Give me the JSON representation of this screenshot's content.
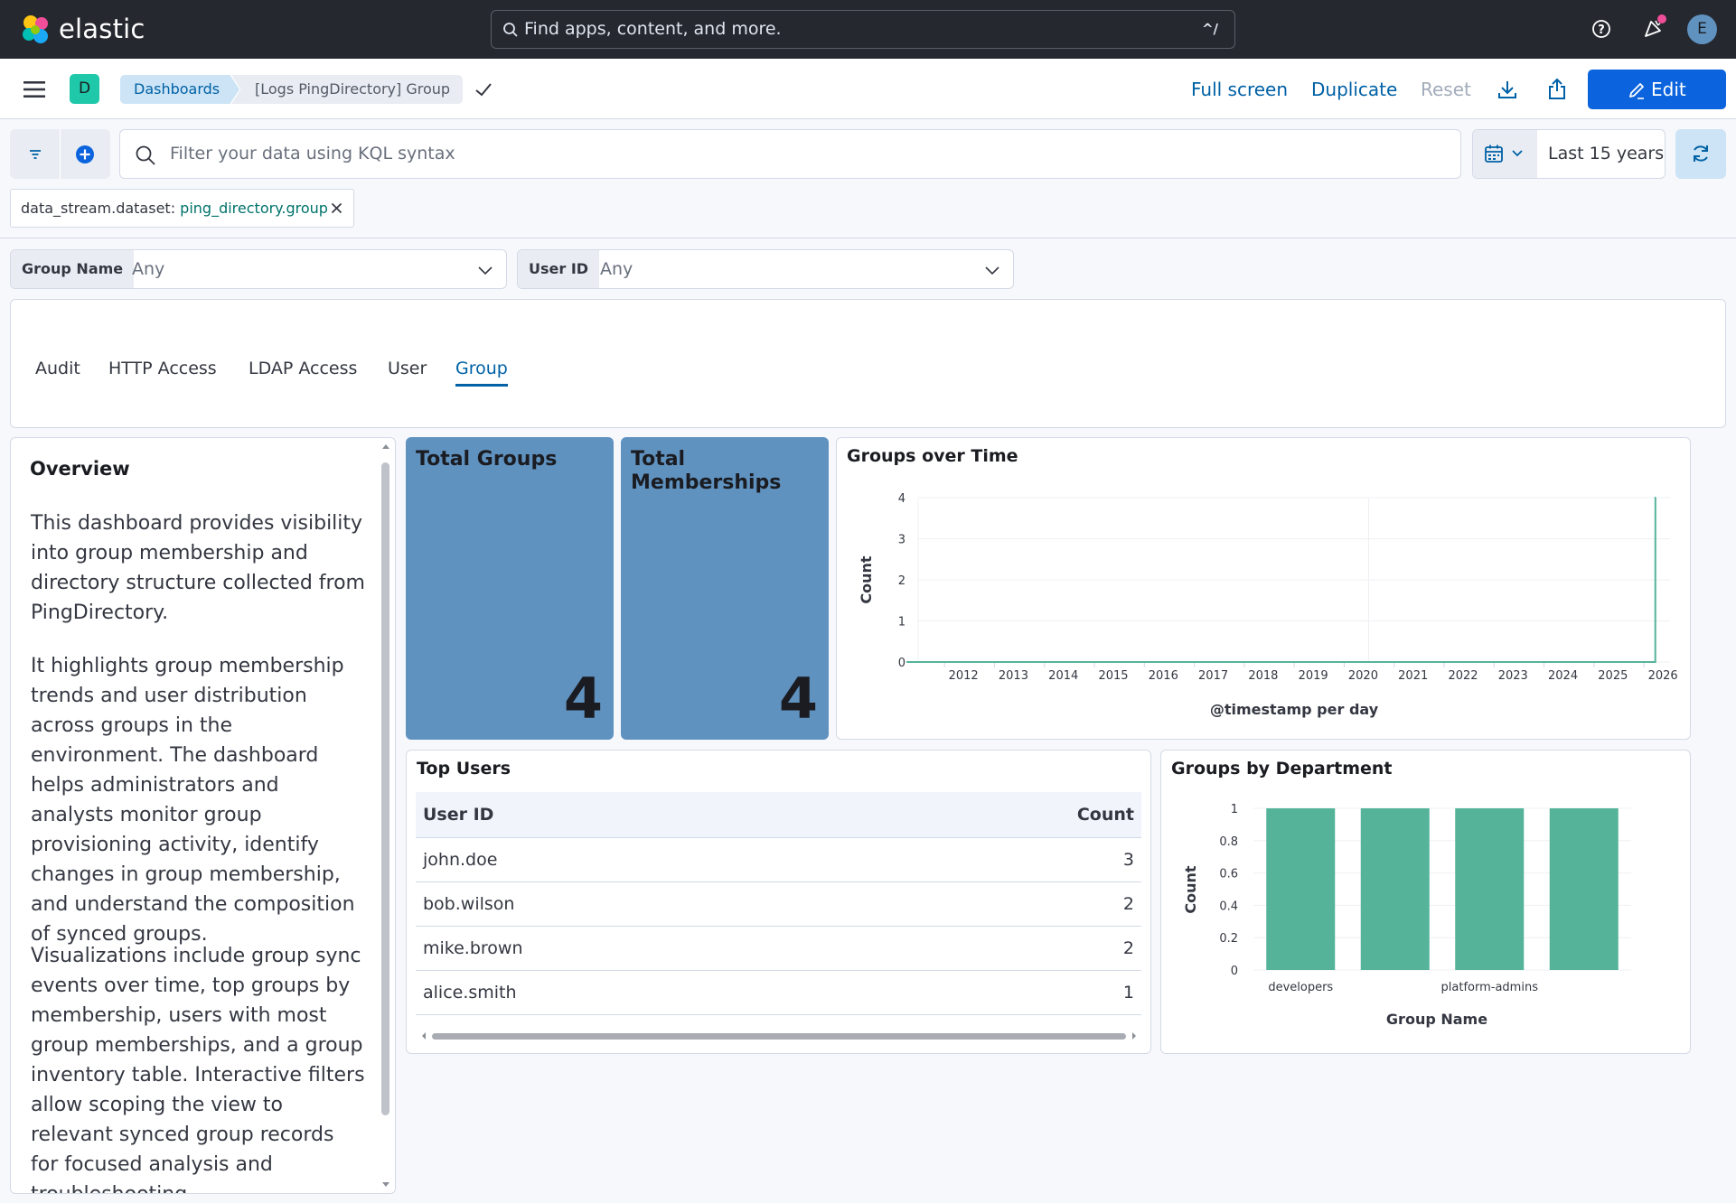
{
  "header": {
    "brand": "elastic",
    "search_placeholder": "Find apps, content, and more.",
    "search_shortcut": "^/",
    "avatar_initial": "E"
  },
  "appbar": {
    "space_initial": "D",
    "breadcrumbs": [
      "Dashboards",
      "[Logs PingDirectory] Group"
    ],
    "full_screen": "Full screen",
    "duplicate": "Duplicate",
    "reset": "Reset",
    "edit": "Edit"
  },
  "query": {
    "placeholder": "Filter your data using KQL syntax",
    "time_range": "Last 15 years",
    "filter_field": "data_stream.dataset: ",
    "filter_value": "ping_directory.group"
  },
  "controls": [
    {
      "label": "Group Name",
      "value": "Any"
    },
    {
      "label": "User ID",
      "value": "Any"
    }
  ],
  "tabs": [
    {
      "label": "Audit",
      "active": false
    },
    {
      "label": "HTTP Access",
      "active": false
    },
    {
      "label": "LDAP Access",
      "active": false
    },
    {
      "label": "User",
      "active": false
    },
    {
      "label": "Group",
      "active": true
    }
  ],
  "overview": {
    "title": "Overview",
    "paragraphs": [
      "This dashboard provides visibility into group membership and directory structure collected from PingDirectory.",
      "It highlights group membership trends and user distribution across groups in the environment. The dashboard helps administrators and analysts monitor group provisioning activity, identify changes in group membership, and understand the composition of synced groups.",
      "Visualizations include group sync events over time, top groups by membership, users with most group memberships, and a group inventory table. Interactive filters allow scoping the view to relevant synced group records for focused analysis and troubleshooting."
    ]
  },
  "metrics": [
    {
      "title": "Total Groups",
      "value": "4"
    },
    {
      "title": "Total Memberships",
      "value": "4"
    }
  ],
  "top_users": {
    "title": "Top Users",
    "columns": [
      "User ID",
      "Count"
    ],
    "rows": [
      [
        "john.doe",
        "3"
      ],
      [
        "bob.wilson",
        "2"
      ],
      [
        "mike.brown",
        "2"
      ],
      [
        "alice.smith",
        "1"
      ]
    ]
  },
  "colors": {
    "accent": "#0b64dd",
    "metric_bg": "#6092c0",
    "series": "#54b399",
    "header_bg": "#25282f"
  },
  "chart_data": [
    {
      "type": "line",
      "title": "Groups over Time",
      "xlabel": "@timestamp per day",
      "ylabel": "Count",
      "x_ticks": [
        "2012",
        "2013",
        "2014",
        "2015",
        "2016",
        "2017",
        "2018",
        "2019",
        "2020",
        "2021",
        "2022",
        "2023",
        "2024",
        "2025",
        "2026"
      ],
      "y_ticks": [
        0,
        1,
        2,
        3,
        4
      ],
      "ylim": [
        0,
        4
      ],
      "series": [
        {
          "x": [
            "2011-03",
            "2026-02-27",
            "2026-02-28",
            "2026-03-01"
          ],
          "values": [
            0,
            0,
            4,
            4
          ]
        }
      ]
    },
    {
      "type": "bar",
      "title": "Groups by Department",
      "xlabel": "Group Name",
      "ylabel": "Count",
      "categories": [
        "developers",
        "",
        "platform-admins",
        ""
      ],
      "values": [
        1,
        1,
        1,
        1
      ],
      "y_ticks": [
        0,
        0.2,
        0.4,
        0.6,
        0.8,
        1
      ],
      "ylim": [
        0,
        1
      ]
    }
  ]
}
